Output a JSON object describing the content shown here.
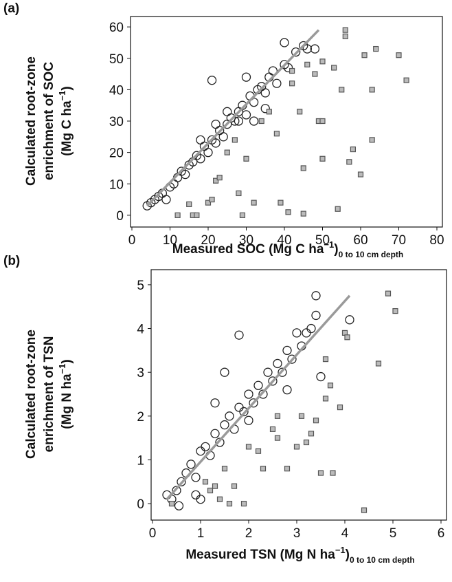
{
  "chart_data": [
    {
      "type": "scatter",
      "panel_label": "(a)",
      "ylabel_lines": [
        "Calculated root-zone",
        "enrichment of SOC",
        "(Mg C ha"
      ],
      "ylabel_superscript": "−1",
      "ylabel_end": ")",
      "xlabel": "Measured SOC (Mg C ha",
      "xlabel_superscript": "−1",
      "xlabel_end": ")",
      "xlabel_subscript": "0 to 10 cm depth",
      "xlim": [
        0,
        80
      ],
      "ylim": [
        -2,
        62
      ],
      "xticks": [
        0,
        10,
        20,
        30,
        40,
        50,
        60,
        70,
        80
      ],
      "yticks": [
        0,
        10,
        20,
        30,
        40,
        50,
        60
      ],
      "fit_line": {
        "color": "#9a9a9a",
        "x": [
          4,
          49
        ],
        "values": [
          3,
          59
        ]
      },
      "series": [
        {
          "marker": "circle",
          "color": "#222222",
          "x": [
            4,
            5,
            6,
            7,
            8,
            9,
            10,
            11,
            12,
            13,
            14,
            15,
            16,
            17,
            18,
            19,
            20,
            21,
            22,
            23,
            24,
            25,
            26,
            27,
            28,
            29,
            30,
            31,
            32,
            33,
            34,
            35,
            36,
            37,
            38,
            40,
            41,
            43,
            45,
            46,
            48,
            40,
            21,
            28,
            32,
            35,
            18,
            22,
            25,
            30
          ],
          "values": [
            3,
            4,
            5,
            6,
            7,
            5,
            9,
            10,
            12,
            14,
            13,
            16,
            17,
            19,
            18,
            22,
            20,
            24,
            23,
            27,
            25,
            29,
            31,
            30,
            33,
            35,
            32,
            38,
            36,
            40,
            41,
            39,
            44,
            46,
            42,
            48,
            47,
            52,
            54,
            53,
            53,
            55,
            43,
            30,
            30,
            34,
            24,
            29,
            33,
            44
          ]
        },
        {
          "marker": "square",
          "color": "#555555",
          "x": [
            12,
            15,
            16,
            17,
            20,
            21,
            22,
            23,
            25,
            27,
            28,
            29,
            30,
            32,
            34,
            36,
            38,
            39,
            41,
            42,
            44,
            45,
            45,
            46,
            48,
            50,
            50,
            53,
            55,
            56,
            56,
            57,
            58,
            60,
            61,
            63,
            63,
            64,
            70,
            72,
            49,
            50,
            54,
            42
          ],
          "values": [
            0,
            3.5,
            0,
            0,
            4,
            5,
            11,
            12,
            20,
            24,
            7,
            0,
            18,
            4,
            30,
            33,
            26,
            4,
            1,
            42,
            33,
            15,
            0.5,
            48,
            45,
            49,
            18,
            47,
            40,
            59,
            57,
            17,
            21,
            13,
            51,
            40,
            24,
            53,
            51,
            43,
            30,
            30,
            2,
            46
          ]
        }
      ]
    },
    {
      "type": "scatter",
      "panel_label": "(b)",
      "ylabel_lines": [
        "Calculated root-zone",
        "enrichment of TSN",
        "(Mg N ha"
      ],
      "ylabel_superscript": "−1",
      "ylabel_end": ")",
      "xlabel": "Measured TSN (Mg N ha",
      "xlabel_superscript": "−1",
      "xlabel_end": ")",
      "xlabel_subscript": "0 to 10 cm depth",
      "xlim": [
        0,
        6
      ],
      "ylim": [
        -0.25,
        5.25
      ],
      "xticks": [
        0,
        1,
        2,
        3,
        4,
        5,
        6
      ],
      "yticks": [
        0,
        1,
        2,
        3,
        4,
        5
      ],
      "fit_line": {
        "color": "#9a9a9a",
        "x": [
          0.3,
          4.1
        ],
        "values": [
          0.1,
          4.75
        ]
      },
      "series": [
        {
          "marker": "circle",
          "color": "#222222",
          "x": [
            0.3,
            0.4,
            0.5,
            0.55,
            0.6,
            0.7,
            0.8,
            0.9,
            1.0,
            1.1,
            1.2,
            1.3,
            1.4,
            1.5,
            1.6,
            1.7,
            1.8,
            1.9,
            2.0,
            2.1,
            2.2,
            2.3,
            2.4,
            2.5,
            2.6,
            2.7,
            2.8,
            2.9,
            3.0,
            3.1,
            3.2,
            3.3,
            3.4,
            3.4,
            4.1,
            1.8,
            1.5,
            1.3,
            0.9,
            1.0,
            2.0,
            3.5,
            2.8
          ],
          "values": [
            0.2,
            0.1,
            0.3,
            -0.05,
            0.5,
            0.7,
            0.9,
            0.6,
            1.2,
            1.3,
            1.1,
            1.6,
            1.4,
            1.8,
            2.0,
            1.7,
            2.2,
            2.1,
            2.5,
            2.3,
            2.7,
            2.5,
            3.0,
            2.8,
            3.2,
            3.0,
            3.5,
            3.3,
            3.9,
            3.6,
            3.9,
            4.0,
            4.75,
            4.3,
            4.2,
            3.85,
            3.0,
            2.3,
            0.2,
            0.1,
            1.9,
            2.9,
            2.6
          ]
        },
        {
          "marker": "square",
          "color": "#555555",
          "x": [
            0.4,
            1.1,
            1.2,
            1.3,
            1.4,
            1.5,
            1.6,
            1.7,
            1.9,
            2.0,
            2.2,
            2.3,
            2.5,
            2.6,
            2.8,
            3.0,
            3.1,
            3.2,
            3.3,
            3.4,
            3.5,
            3.6,
            3.7,
            3.75,
            3.9,
            4.0,
            4.05,
            4.4,
            4.7,
            4.9,
            5.05,
            3.6,
            2.6
          ],
          "values": [
            0,
            0.5,
            0.3,
            0.4,
            0.1,
            0.8,
            0,
            0.4,
            0,
            1.3,
            1.2,
            0.8,
            1.7,
            1.5,
            0.8,
            1.3,
            2.0,
            1.4,
            1.6,
            1.9,
            0.7,
            2.4,
            2.7,
            0.7,
            2.2,
            3.9,
            3.8,
            -0.15,
            3.2,
            4.8,
            4.4,
            3.3,
            2.0
          ]
        }
      ]
    }
  ]
}
